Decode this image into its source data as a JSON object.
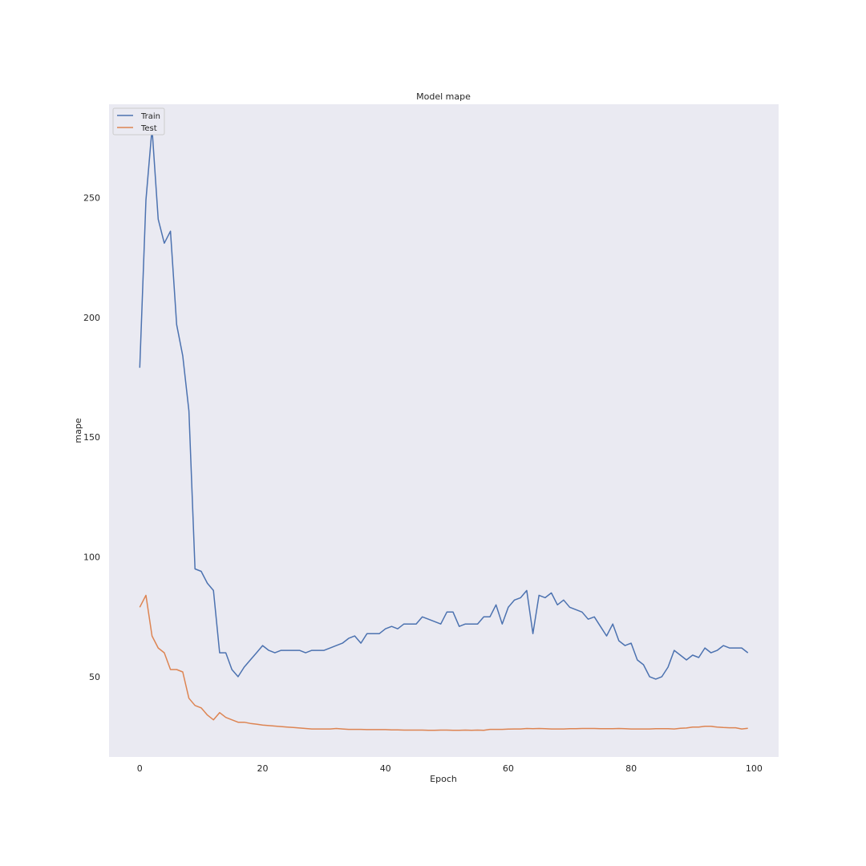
{
  "chart_data": {
    "type": "line",
    "title": "Model mape",
    "xlabel": "Epoch",
    "ylabel": "mape",
    "xlim": [
      -5,
      104
    ],
    "ylim": [
      16.5,
      289
    ],
    "xticks": [
      0,
      20,
      40,
      60,
      80,
      100
    ],
    "yticks": [
      50,
      100,
      150,
      200,
      250
    ],
    "grid": false,
    "background_color": "#EAEAF2",
    "legend_position": "top-left",
    "series": [
      {
        "name": "Train",
        "color": "#4C72B0",
        "x": [
          0,
          1,
          2,
          3,
          4,
          5,
          6,
          7,
          8,
          9,
          10,
          11,
          12,
          13,
          14,
          15,
          16,
          17,
          18,
          19,
          20,
          21,
          22,
          23,
          24,
          25,
          26,
          27,
          28,
          29,
          30,
          31,
          32,
          33,
          34,
          35,
          36,
          37,
          38,
          39,
          40,
          41,
          42,
          43,
          44,
          45,
          46,
          47,
          48,
          49,
          50,
          51,
          52,
          53,
          54,
          55,
          56,
          57,
          58,
          59,
          60,
          61,
          62,
          63,
          64,
          65,
          66,
          67,
          68,
          69,
          70,
          71,
          72,
          73,
          74,
          75,
          76,
          77,
          78,
          79,
          80,
          81,
          82,
          83,
          84,
          85,
          86,
          87,
          88,
          89,
          90,
          91,
          92,
          93,
          94,
          95,
          96,
          97,
          98,
          99
        ],
        "values": [
          179,
          249,
          279,
          241,
          231,
          236,
          197,
          184,
          161,
          95,
          94,
          89,
          86,
          60,
          60,
          53,
          50,
          54,
          57,
          60,
          63,
          61,
          60,
          61,
          61,
          61,
          61,
          60,
          61,
          61,
          61,
          62,
          63,
          64,
          66,
          67,
          64,
          68,
          68,
          68,
          70,
          71,
          70,
          72,
          72,
          72,
          75,
          74,
          73,
          72,
          77,
          77,
          71,
          72,
          72,
          72,
          75,
          75,
          80,
          72,
          79,
          82,
          83,
          86,
          68,
          84,
          83,
          85,
          80,
          82,
          79,
          78,
          77,
          74,
          75,
          71,
          67,
          72,
          65,
          63,
          64,
          57,
          55,
          50,
          49,
          50,
          54,
          61,
          59,
          57,
          59,
          58,
          62,
          60,
          61,
          63,
          62,
          62,
          62,
          60
        ]
      },
      {
        "name": "Test",
        "color": "#DD8452",
        "x": [
          0,
          1,
          2,
          3,
          4,
          5,
          6,
          7,
          8,
          9,
          10,
          11,
          12,
          13,
          14,
          15,
          16,
          17,
          18,
          19,
          20,
          21,
          22,
          23,
          24,
          25,
          26,
          27,
          28,
          29,
          30,
          31,
          32,
          33,
          34,
          35,
          36,
          37,
          38,
          39,
          40,
          41,
          42,
          43,
          44,
          45,
          46,
          47,
          48,
          49,
          50,
          51,
          52,
          53,
          54,
          55,
          56,
          57,
          58,
          59,
          60,
          61,
          62,
          63,
          64,
          65,
          66,
          67,
          68,
          69,
          70,
          71,
          72,
          73,
          74,
          75,
          76,
          77,
          78,
          79,
          80,
          81,
          82,
          83,
          84,
          85,
          86,
          87,
          88,
          89,
          90,
          91,
          92,
          93,
          94,
          95,
          96,
          97,
          98,
          99
        ],
        "values": [
          79,
          84,
          67,
          62,
          60,
          53,
          53,
          52,
          41,
          38,
          37,
          34,
          32,
          35,
          33,
          32,
          31,
          31,
          30.5,
          30.2,
          29.8,
          29.6,
          29.4,
          29.2,
          29,
          28.8,
          28.6,
          28.4,
          28.2,
          28.2,
          28.2,
          28.2,
          28.4,
          28.2,
          28,
          28,
          28,
          27.9,
          27.9,
          27.9,
          27.9,
          27.8,
          27.8,
          27.7,
          27.7,
          27.7,
          27.7,
          27.6,
          27.6,
          27.7,
          27.7,
          27.6,
          27.6,
          27.7,
          27.6,
          27.7,
          27.6,
          28,
          28,
          28,
          28.1,
          28.2,
          28.2,
          28.4,
          28.3,
          28.4,
          28.3,
          28.2,
          28.2,
          28.2,
          28.3,
          28.3,
          28.4,
          28.4,
          28.4,
          28.3,
          28.3,
          28.3,
          28.4,
          28.3,
          28.2,
          28.2,
          28.2,
          28.2,
          28.3,
          28.3,
          28.3,
          28.2,
          28.5,
          28.6,
          29,
          29,
          29.3,
          29.3,
          29,
          28.8,
          28.7,
          28.7,
          28.2,
          28.5
        ]
      }
    ]
  }
}
